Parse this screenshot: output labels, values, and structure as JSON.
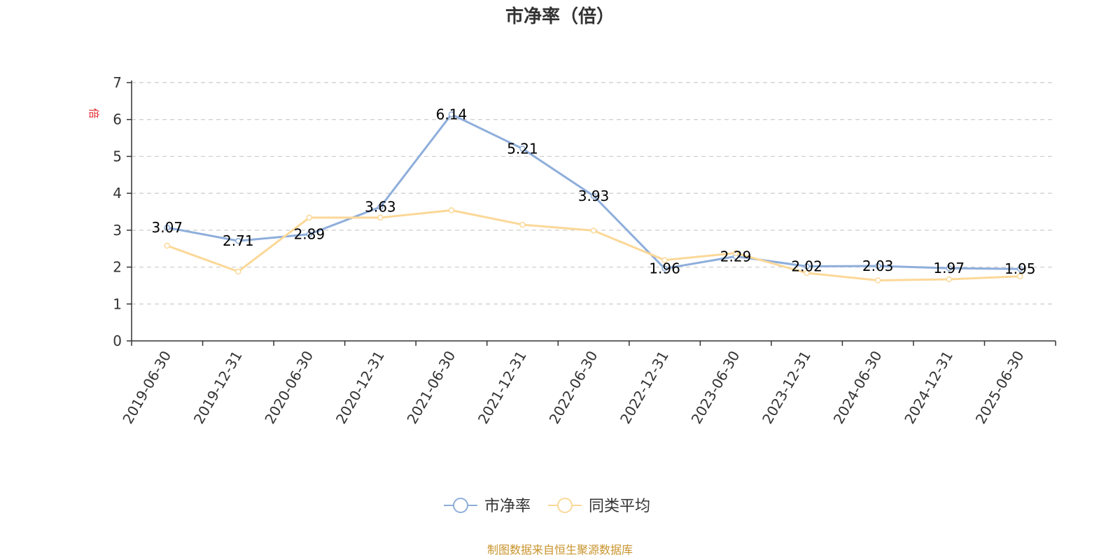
{
  "colors": {
    "series1": "#8eaedb",
    "series2": "#fbd898",
    "grid": "#cccccc",
    "axis": "#333333",
    "unit": "#e0262d",
    "source": "#c8942d"
  },
  "chart_data": {
    "type": "line",
    "title": "市净率（倍）",
    "ylabel": "倍",
    "xlabel": "",
    "ylim": [
      0,
      7
    ],
    "yticks": [
      "0",
      "1",
      "2",
      "3",
      "4",
      "5",
      "6",
      "7"
    ],
    "grid": true,
    "legend_position": "bottom",
    "categories": [
      "2019-06-30",
      "2019-12-31",
      "2020-06-30",
      "2020-12-31",
      "2021-06-30",
      "2021-12-31",
      "2022-06-30",
      "2022-12-31",
      "2023-06-30",
      "2023-12-31",
      "2024-06-30",
      "2024-12-31",
      "2025-06-30"
    ],
    "series": [
      {
        "name": "市净率",
        "values": [
          3.07,
          2.71,
          2.89,
          3.63,
          6.14,
          5.21,
          3.93,
          1.96,
          2.29,
          2.02,
          2.03,
          1.97,
          1.95
        ],
        "labels": [
          "3.07",
          "2.71",
          "2.89",
          "3.63",
          "6.14",
          "5.21",
          "3.93",
          "1.96",
          "2.29",
          "2.02",
          "2.03",
          "1.97",
          "1.95"
        ]
      },
      {
        "name": "同类平均",
        "values": [
          2.58,
          1.88,
          3.34,
          3.34,
          3.54,
          3.15,
          2.99,
          2.19,
          2.38,
          1.84,
          1.64,
          1.67,
          1.75
        ]
      }
    ],
    "source": "制图数据来自恒生聚源数据库"
  }
}
